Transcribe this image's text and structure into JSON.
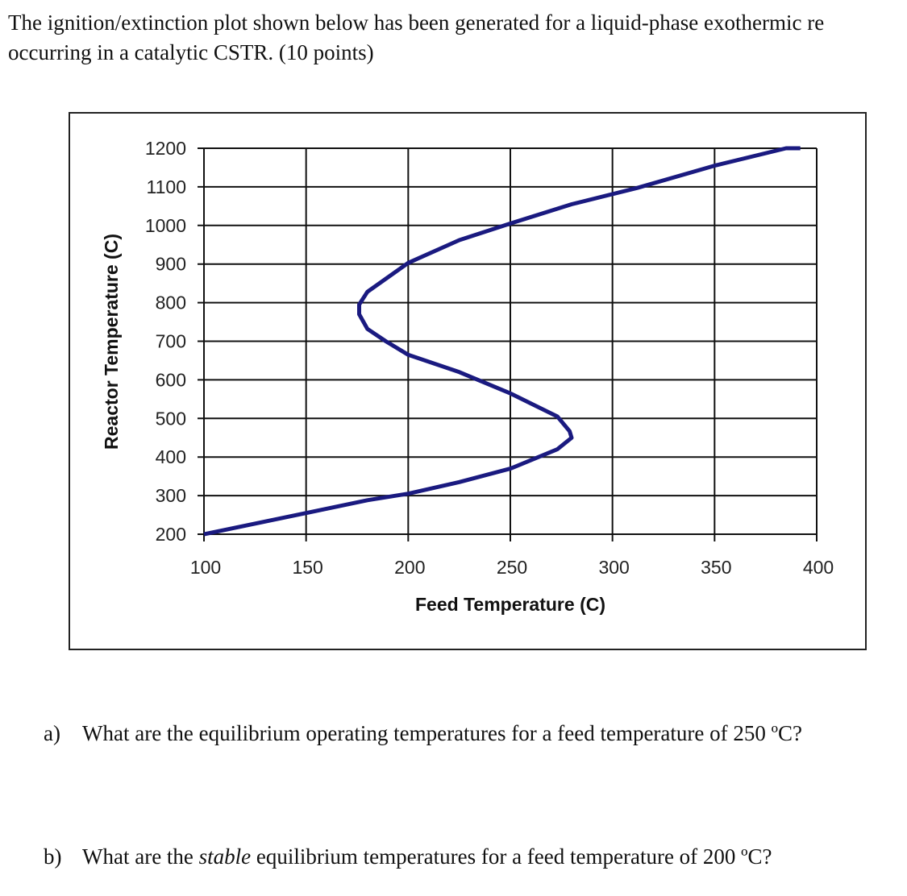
{
  "intro": {
    "line1": "The ignition/extinction plot shown below has been generated for a liquid-phase exothermic re",
    "line2": "occurring in a catalytic CSTR. (10 points)"
  },
  "chart_data": {
    "type": "line",
    "title": "",
    "xlabel": "Feed Temperature (C)",
    "ylabel": "Reactor Temperature (C)",
    "xlim": [
      100,
      400
    ],
    "ylim": [
      200,
      1200
    ],
    "x_ticks": [
      100,
      150,
      200,
      250,
      300,
      350,
      400
    ],
    "y_ticks": [
      200,
      300,
      400,
      500,
      600,
      700,
      800,
      900,
      1000,
      1100,
      1200
    ],
    "grid": true,
    "legend": null,
    "line_color": "#1a1a80",
    "series": [
      {
        "name": "Ignition/extinction curve",
        "points": [
          [
            100,
            200
          ],
          [
            150,
            255
          ],
          [
            180,
            288
          ],
          [
            200,
            305
          ],
          [
            225,
            335
          ],
          [
            250,
            370
          ],
          [
            273,
            420
          ],
          [
            280,
            450
          ],
          [
            279,
            467
          ],
          [
            273,
            505
          ],
          [
            250,
            565
          ],
          [
            225,
            620
          ],
          [
            200,
            665
          ],
          [
            189,
            700
          ],
          [
            180,
            732
          ],
          [
            176,
            770
          ],
          [
            176,
            795
          ],
          [
            180,
            828
          ],
          [
            200,
            903
          ],
          [
            225,
            962
          ],
          [
            250,
            1005
          ],
          [
            280,
            1055
          ],
          [
            312,
            1097
          ],
          [
            350,
            1155
          ],
          [
            385,
            1200
          ],
          [
            392,
            1200
          ]
        ]
      }
    ]
  },
  "questions": [
    {
      "label": "a)",
      "text_before": "What are the equilibrium operating temperatures for a feed temperature of 250 ºC?",
      "italic": "",
      "text_after": ""
    },
    {
      "label": "b)",
      "text_before": "What are the ",
      "italic": "stable",
      "text_after": " equilibrium temperatures for a feed temperature of 200 ºC?"
    }
  ]
}
